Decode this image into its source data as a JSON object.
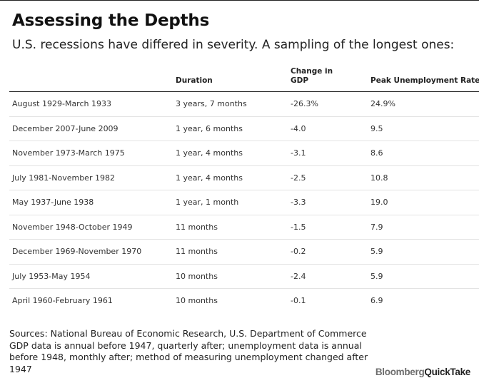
{
  "header": {
    "title": "Assessing the Depths",
    "subtitle": "U.S. recessions have differed in severity. A sampling of the longest ones:"
  },
  "table": {
    "columns": [
      "",
      "Duration",
      "Change in GDP",
      "Peak Unemployment Rate"
    ],
    "rows": [
      [
        "August 1929-March 1933",
        "3 years, 7 months",
        "-26.3%",
        "24.9%"
      ],
      [
        "December 2007-June 2009",
        "1 year, 6 months",
        "-4.0",
        "9.5"
      ],
      [
        "November 1973-March 1975",
        "1 year, 4 months",
        "-3.1",
        "8.6"
      ],
      [
        "July 1981-November 1982",
        "1 year, 4 months",
        "-2.5",
        "10.8"
      ],
      [
        "May 1937-June 1938",
        "1 year, 1 month",
        "-3.3",
        "19.0"
      ],
      [
        "November 1948-October 1949",
        "11 months",
        "-1.5",
        "7.9"
      ],
      [
        "December 1969-November 1970",
        "11 months",
        "-0.2",
        "5.9"
      ],
      [
        "July 1953-May 1954",
        "10 months",
        "-2.4",
        "5.9"
      ],
      [
        "April 1960-February 1961",
        "10 months",
        "-0.1",
        "6.9"
      ]
    ]
  },
  "footer": {
    "sources": [
      "Sources: National Bureau of Economic Research, U.S. Department of Commerce",
      "GDP data is annual before 1947, quarterly after; unemployment data is annual",
      "before 1948, monthly after; method of measuring unemployment changed after",
      "1947"
    ],
    "logo_part1": "Bloomberg",
    "logo_part2": "QuickTake"
  }
}
